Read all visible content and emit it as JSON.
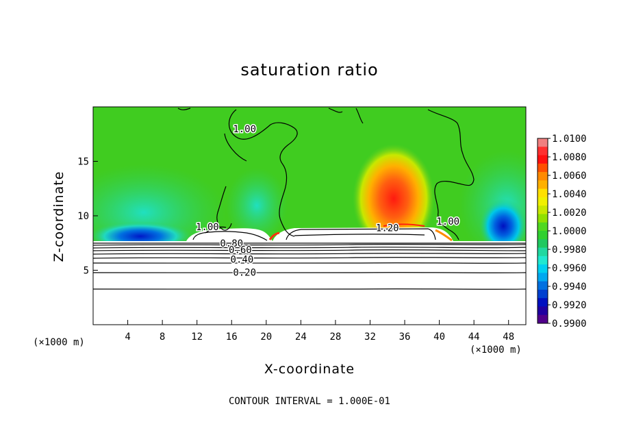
{
  "chart_data": {
    "type": "heatmap",
    "title": "saturation ratio",
    "xlabel": "X-coordinate",
    "ylabel": "Z-coordinate",
    "x_unit": "(×1000 m)",
    "y_unit": "(×1000 m)",
    "footnote": "CONTOUR INTERVAL = 1.000E-01",
    "xlim": [
      0,
      50
    ],
    "ylim": [
      0,
      20
    ],
    "x_ticks": [
      4,
      8,
      12,
      16,
      20,
      24,
      28,
      32,
      36,
      40,
      44,
      48
    ],
    "y_ticks": [
      5,
      10,
      15
    ],
    "colorbar": {
      "min": 0.99,
      "max": 1.01,
      "labels": [
        "1.0100",
        "1.0080",
        "1.0060",
        "1.0040",
        "1.0020",
        "1.0000",
        "0.9980",
        "0.9960",
        "0.9940",
        "0.9920",
        "0.9900"
      ],
      "colors": [
        "#f08080",
        "#ff3030",
        "#ff1010",
        "#ff5000",
        "#ff8a00",
        "#ffb000",
        "#ffe000",
        "#f0f000",
        "#c8e800",
        "#90e000",
        "#50d820",
        "#30d030",
        "#20c860",
        "#20d8a0",
        "#20e8d0",
        "#00d0f0",
        "#00a8f0",
        "#0070e0",
        "#0040d0",
        "#0010c0",
        "#2000a0",
        "#50008a"
      ]
    },
    "contour_labels": [
      {
        "text": "1.00",
        "x": 17.5,
        "y": 18.0
      },
      {
        "text": "1.00",
        "x": 13.2,
        "y": 9.0
      },
      {
        "text": "1.00",
        "x": 41.0,
        "y": 9.5
      },
      {
        "text": "1.20",
        "x": 34.0,
        "y": 8.9
      },
      {
        "text": "0.80",
        "x": 16.0,
        "y": 7.5
      },
      {
        "text": "0.60",
        "x": 17.0,
        "y": 6.9
      },
      {
        "text": "0.40",
        "x": 17.2,
        "y": 6.0
      },
      {
        "text": "0.20",
        "x": 17.5,
        "y": 4.8
      }
    ]
  }
}
